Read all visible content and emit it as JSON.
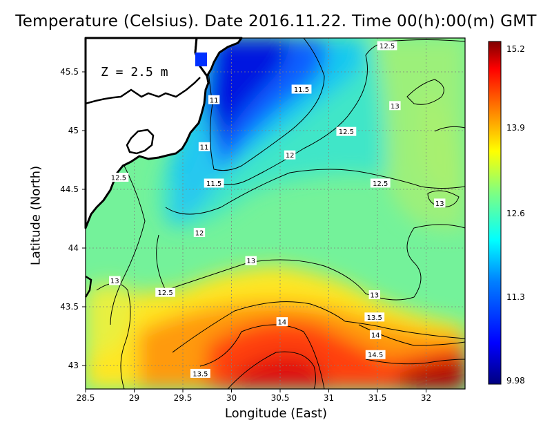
{
  "title": "Temperature (Celsius). Date 2016.11.22. Time 00(h):00(m) GMT",
  "depth_label": "Z = 2.5 m",
  "axes": {
    "x_label": "Longitude (East)",
    "y_label": "Latitude (North)",
    "x_ticks": [
      "28.5",
      "29",
      "29.5",
      "30",
      "30.5",
      "31",
      "31.5",
      "32"
    ],
    "y_ticks": [
      "45.5",
      "45",
      "44.5",
      "44",
      "43.5",
      "43"
    ],
    "x_range": [
      28.5,
      32.4
    ],
    "y_range": [
      42.8,
      45.8
    ]
  },
  "colorbar": {
    "min": 9.98,
    "max": 15.2,
    "tick_labels": [
      "15.2",
      "13.9",
      "12.6",
      "11.3",
      "9.98"
    ],
    "colors": [
      "#00007f",
      "#0000ff",
      "#0080ff",
      "#00ffff",
      "#80ff80",
      "#ffff00",
      "#ff8000",
      "#ff0000",
      "#7f0000"
    ]
  },
  "contour_labels": [
    {
      "text": "12.5",
      "lon": 31.6,
      "lat": 45.72
    },
    {
      "text": "11.5",
      "lon": 30.72,
      "lat": 45.35
    },
    {
      "text": "13",
      "lon": 31.68,
      "lat": 45.21
    },
    {
      "text": "11",
      "lon": 29.82,
      "lat": 45.26
    },
    {
      "text": "12.5",
      "lon": 31.18,
      "lat": 44.99
    },
    {
      "text": "11",
      "lon": 29.72,
      "lat": 44.86
    },
    {
      "text": "12",
      "lon": 30.6,
      "lat": 44.79
    },
    {
      "text": "12.5",
      "lon": 28.84,
      "lat": 44.6
    },
    {
      "text": "11.5",
      "lon": 29.82,
      "lat": 44.55
    },
    {
      "text": "12.5",
      "lon": 31.53,
      "lat": 44.55
    },
    {
      "text": "13",
      "lon": 32.14,
      "lat": 44.38
    },
    {
      "text": "12",
      "lon": 29.67,
      "lat": 44.13
    },
    {
      "text": "13",
      "lon": 30.2,
      "lat": 43.89
    },
    {
      "text": "13",
      "lon": 28.8,
      "lat": 43.72
    },
    {
      "text": "12.5",
      "lon": 29.32,
      "lat": 43.62
    },
    {
      "text": "13",
      "lon": 31.47,
      "lat": 43.6
    },
    {
      "text": "13.5",
      "lon": 31.47,
      "lat": 43.41
    },
    {
      "text": "14",
      "lon": 30.52,
      "lat": 43.37
    },
    {
      "text": "14",
      "lon": 31.48,
      "lat": 43.26
    },
    {
      "text": "14.5",
      "lon": 31.48,
      "lat": 43.09
    },
    {
      "text": "13.5",
      "lon": 29.68,
      "lat": 42.93
    }
  ]
}
